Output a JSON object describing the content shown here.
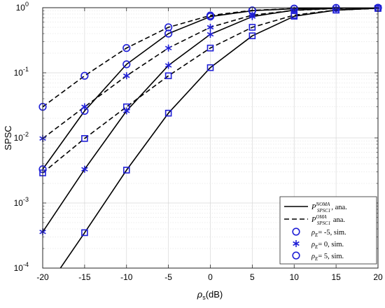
{
  "chart_data": {
    "type": "line",
    "ylabel": "SPSC",
    "xlabel": "ρs(dB)",
    "x_ticks": [
      "-20",
      "-15",
      "-10",
      "-5",
      "0",
      "5",
      "10",
      "15",
      "20"
    ],
    "y_ticks": [
      {
        "base": "10",
        "exp": "-4"
      },
      {
        "base": "10",
        "exp": "-3"
      },
      {
        "base": "10",
        "exp": "-2"
      },
      {
        "base": "10",
        "exp": "-1"
      },
      {
        "base": "10",
        "exp": "0"
      }
    ],
    "xlim": [
      -20,
      20
    ],
    "ylim": [
      0.0001,
      1
    ],
    "yscale": "log",
    "grid": true,
    "legend_position": "bottom-right",
    "colors": {
      "ana_line": "#000000",
      "sim_marker": "#1f1fd6"
    },
    "series": [
      {
        "style": "solid",
        "rho_E": -5,
        "x": [
          -20,
          -15,
          -10,
          -5,
          0,
          5,
          10,
          15,
          20
        ],
        "y": [
          0.0033,
          0.026,
          0.135,
          0.4,
          0.73,
          0.9,
          0.965,
          0.99,
          0.997
        ]
      },
      {
        "style": "solid",
        "rho_E": 0,
        "x": [
          -20,
          -15,
          -10,
          -5,
          0,
          5,
          10,
          15,
          20
        ],
        "y": [
          0.00036,
          0.0033,
          0.026,
          0.13,
          0.39,
          0.73,
          0.92,
          0.975,
          0.993
        ]
      },
      {
        "style": "solid",
        "rho_E": 5,
        "x": [
          -20,
          -15,
          -10,
          -5,
          0,
          5,
          10,
          15,
          20
        ],
        "y": [
          4e-05,
          0.00035,
          0.0032,
          0.024,
          0.12,
          0.37,
          0.74,
          0.92,
          0.98
        ]
      },
      {
        "style": "dashed",
        "rho_E": -5,
        "x": [
          -20,
          -15,
          -10,
          -5,
          0,
          5,
          10,
          15,
          20
        ],
        "y": [
          0.03,
          0.09,
          0.24,
          0.5,
          0.76,
          0.91,
          0.97,
          0.99,
          0.997
        ]
      },
      {
        "style": "dashed",
        "rho_E": 0,
        "x": [
          -20,
          -15,
          -10,
          -5,
          0,
          5,
          10,
          15,
          20
        ],
        "y": [
          0.0098,
          0.03,
          0.09,
          0.24,
          0.5,
          0.77,
          0.91,
          0.97,
          0.99
        ]
      },
      {
        "style": "dashed",
        "rho_E": 5,
        "x": [
          -20,
          -15,
          -10,
          -5,
          0,
          5,
          10,
          15,
          20
        ],
        "y": [
          0.0029,
          0.0098,
          0.03,
          0.09,
          0.24,
          0.5,
          0.77,
          0.92,
          0.975
        ]
      }
    ],
    "markers": [
      {
        "symbol": "circle",
        "rho_E": -5,
        "x": [
          -20,
          -15,
          -10,
          -5,
          0,
          5,
          10,
          15,
          20
        ],
        "y": [
          0.0033,
          0.026,
          0.135,
          0.4,
          0.73,
          0.9,
          0.965,
          0.99,
          0.997
        ]
      },
      {
        "symbol": "circle",
        "rho_E": -5,
        "x": [
          -20,
          -15,
          -10,
          -5,
          0,
          5,
          10,
          15,
          20
        ],
        "y": [
          0.03,
          0.09,
          0.24,
          0.5,
          0.76,
          0.91,
          0.97,
          0.99,
          0.997
        ]
      },
      {
        "symbol": "asterisk",
        "rho_E": 0,
        "x": [
          -20,
          -15,
          -10,
          -5,
          0,
          5,
          10,
          15,
          20
        ],
        "y": [
          0.00036,
          0.0033,
          0.026,
          0.13,
          0.39,
          0.73,
          0.92,
          0.975,
          0.993
        ]
      },
      {
        "symbol": "asterisk",
        "rho_E": 0,
        "x": [
          -20,
          -15,
          -10,
          -5,
          0,
          5,
          10,
          15,
          20
        ],
        "y": [
          0.0098,
          0.03,
          0.09,
          0.24,
          0.5,
          0.77,
          0.91,
          0.97,
          0.99
        ]
      },
      {
        "symbol": "square",
        "rho_E": 5,
        "x": [
          -15,
          -10,
          -5,
          0,
          5,
          10,
          15,
          20
        ],
        "y": [
          0.00035,
          0.0032,
          0.024,
          0.12,
          0.37,
          0.74,
          0.92,
          0.98
        ]
      },
      {
        "symbol": "square",
        "rho_E": 5,
        "x": [
          -20,
          -15,
          -10,
          -5,
          0,
          5,
          10,
          15,
          20
        ],
        "y": [
          0.0029,
          0.0098,
          0.03,
          0.09,
          0.24,
          0.5,
          0.77,
          0.92,
          0.975
        ]
      }
    ],
    "legend": [
      {
        "symbol": "solid-line",
        "main": "P",
        "sup": "NOMA",
        "sub": "SPSC1",
        "suffix": ", ana."
      },
      {
        "symbol": "dashed-line",
        "main": "P",
        "sup": "OMA",
        "sub": "SPSC1",
        "suffix": " ana."
      },
      {
        "symbol": "circle",
        "var": "ρ",
        "var_sub": "E",
        "value": "= -5, sim."
      },
      {
        "symbol": "asterisk",
        "var": "ρ",
        "var_sub": "E",
        "value": "= 0, sim."
      },
      {
        "symbol": "circle",
        "var": "ρ",
        "var_sub": "E",
        "value": "= 5, sim."
      }
    ]
  }
}
